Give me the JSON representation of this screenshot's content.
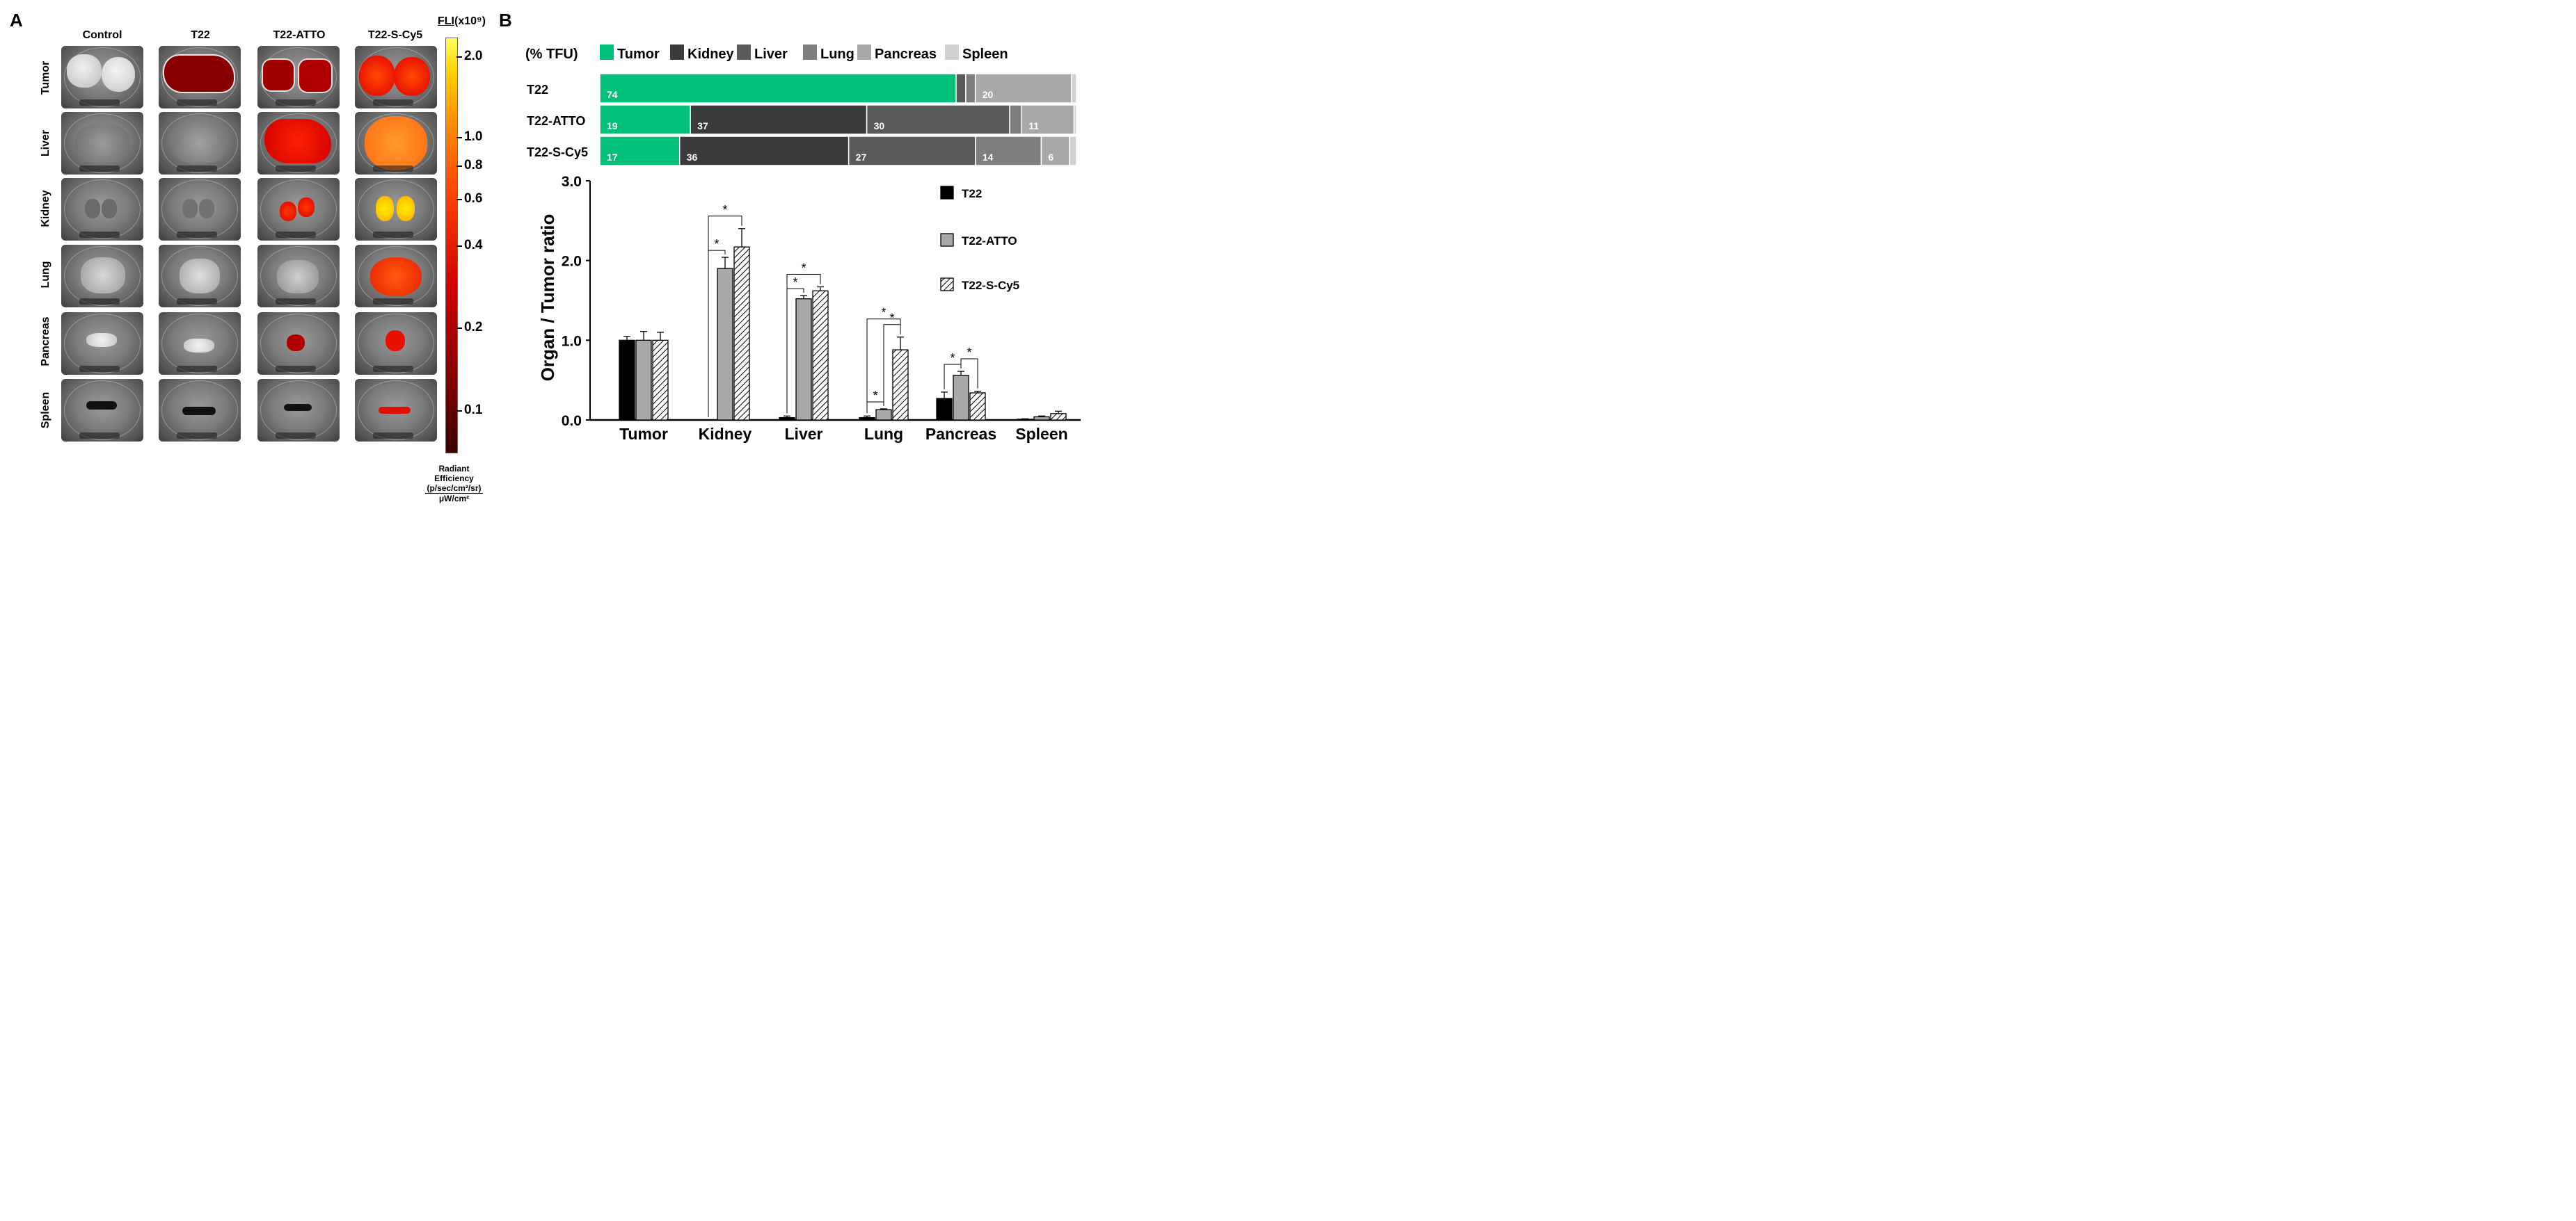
{
  "panel_a": {
    "letter": "A",
    "columns": [
      "Control",
      "T22",
      "T22-ATTO",
      "T22-S-Cy5"
    ],
    "rows": [
      "Tumor",
      "Liver",
      "Kidney",
      "Lung",
      "Pancreas",
      "Spleen"
    ],
    "colorbar": {
      "title": "FLI",
      "title_suffix": "(x10⁹)",
      "ticks": [
        "2.0",
        "1.0",
        "0.8",
        "0.6",
        "0.4",
        "0.2",
        "0.1"
      ],
      "unit_lines": [
        "Radiant",
        "Efficiency",
        "p/sec/cm²/sr",
        "μW/cm²"
      ]
    }
  },
  "panel_b": {
    "letter": "B",
    "colors": {
      "Tumor": "#00c07a",
      "Kidney": "#3a3a3a",
      "Liver": "#5a5a5a",
      "Lung": "#7e7e7e",
      "Pancreas": "#a8a8a8",
      "Spleen": "#d0d0d0"
    }
  },
  "chart_data": [
    {
      "type": "bar",
      "orientation": "horizontal-stacked",
      "legend_title": "(% TFU)",
      "categories": [
        "T22",
        "T22-ATTO",
        "T22-S-Cy5"
      ],
      "series": [
        {
          "name": "Tumor",
          "values": [
            74,
            19,
            17
          ],
          "labels": [
            "74",
            "19",
            "17"
          ]
        },
        {
          "name": "Kidney",
          "values": [
            0,
            37,
            36
          ],
          "labels": [
            "",
            "37",
            "36"
          ]
        },
        {
          "name": "Liver",
          "values": [
            2,
            30,
            27
          ],
          "labels": [
            "",
            "30",
            "27"
          ]
        },
        {
          "name": "Lung",
          "values": [
            2,
            2.5,
            14
          ],
          "labels": [
            "",
            "",
            "14"
          ]
        },
        {
          "name": "Pancreas",
          "values": [
            20,
            11,
            6
          ],
          "labels": [
            "20",
            "11",
            "6"
          ]
        },
        {
          "name": "Spleen",
          "values": [
            1,
            0.5,
            1.5
          ],
          "labels": [
            "",
            "",
            ""
          ]
        }
      ]
    },
    {
      "type": "bar",
      "ylabel": "Organ / Tumor ratio",
      "ylim": [
        0,
        3
      ],
      "yticks": [
        "0.0",
        "1.0",
        "2.0",
        "3.0"
      ],
      "categories": [
        "Tumor",
        "Kidney",
        "Liver",
        "Lung",
        "Pancreas",
        "Spleen"
      ],
      "series": [
        {
          "name": "T22",
          "style": "black",
          "values": [
            1.0,
            0.0,
            0.03,
            0.03,
            0.27,
            0.01
          ],
          "errors": [
            0.05,
            0,
            0.02,
            0.02,
            0.08,
            0.005
          ]
        },
        {
          "name": "T22-ATTO",
          "style": "gray",
          "values": [
            1.0,
            1.9,
            1.52,
            0.13,
            0.56,
            0.04
          ],
          "errors": [
            0.11,
            0.14,
            0.04,
            0.01,
            0.05,
            0.01
          ]
        },
        {
          "name": "T22-S-Cy5",
          "style": "hatched",
          "values": [
            1.0,
            2.17,
            1.62,
            0.88,
            0.34,
            0.08
          ],
          "errors": [
            0.1,
            0.23,
            0.05,
            0.16,
            0.02,
            0.03
          ]
        }
      ],
      "significance": [
        {
          "category": "Kidney",
          "from": "T22",
          "to": "T22-ATTO",
          "mark": "*"
        },
        {
          "category": "Kidney",
          "from": "T22",
          "to": "T22-S-Cy5",
          "mark": "*"
        },
        {
          "category": "Liver",
          "from": "T22",
          "to": "T22-ATTO",
          "mark": "*"
        },
        {
          "category": "Liver",
          "from": "T22",
          "to": "T22-S-Cy5",
          "mark": "*"
        },
        {
          "category": "Lung",
          "from": "T22",
          "to": "T22-ATTO",
          "mark": "*"
        },
        {
          "category": "Lung",
          "from": "T22-ATTO",
          "to": "T22-S-Cy5",
          "mark": "*"
        },
        {
          "category": "Lung",
          "from": "T22",
          "to": "T22-S-Cy5",
          "mark": "*"
        },
        {
          "category": "Pancreas",
          "from": "T22",
          "to": "T22-ATTO",
          "mark": "*"
        },
        {
          "category": "Pancreas",
          "from": "T22-ATTO",
          "to": "T22-S-Cy5",
          "mark": "*"
        }
      ]
    }
  ]
}
